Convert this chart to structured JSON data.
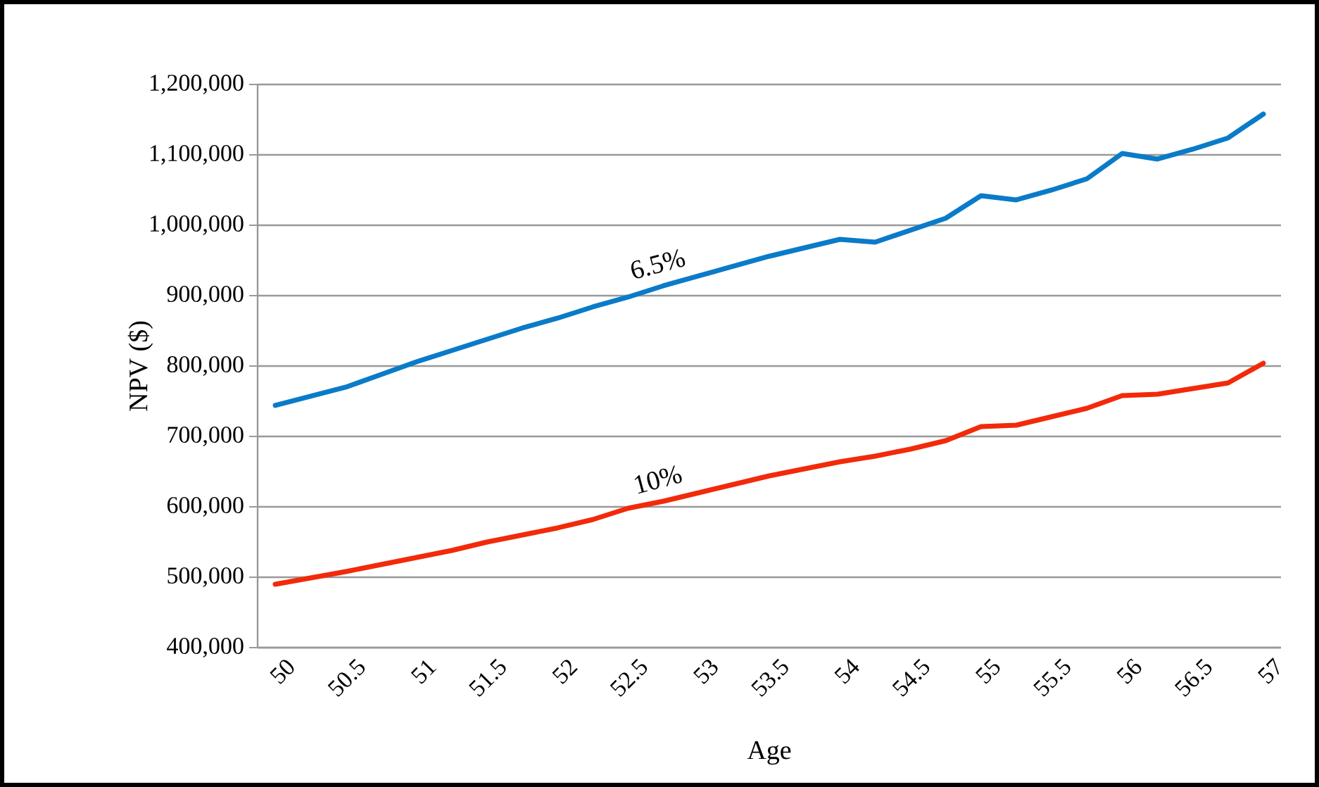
{
  "chart_data": {
    "type": "line",
    "xlabel": "Age",
    "ylabel": "NPV ($)",
    "categories": [
      "50",
      null,
      "50.5",
      null,
      "51",
      null,
      "51.5",
      null,
      "52",
      null,
      "52.5",
      null,
      "53",
      null,
      "53.5",
      null,
      "54",
      null,
      "54.5",
      null,
      "55",
      null,
      "55.5",
      null,
      "56",
      null,
      "56.5",
      null,
      "57"
    ],
    "series": [
      {
        "name": "6.5%",
        "color": "#0a7bc8",
        "values": [
          744000,
          757000,
          770000,
          788000,
          806000,
          822000,
          838000,
          854000,
          868000,
          884000,
          898000,
          914000,
          928000,
          942000,
          956000,
          968000,
          980000,
          976000,
          993000,
          1010000,
          1042000,
          1036000,
          1050000,
          1066000,
          1102000,
          1094000,
          1108000,
          1124000,
          1158000
        ]
      },
      {
        "name": "10%",
        "color": "#f22a0a",
        "values": [
          490000,
          499000,
          508000,
          518000,
          528000,
          538000,
          550000,
          560000,
          570000,
          582000,
          598000,
          608000,
          620000,
          632000,
          644000,
          654000,
          664000,
          672000,
          682000,
          694000,
          714000,
          716000,
          728000,
          740000,
          758000,
          760000,
          768000,
          776000,
          804000
        ]
      }
    ],
    "ylim": [
      400000,
      1200000
    ],
    "yticks": [
      {
        "value": 400000,
        "label": "400,000"
      },
      {
        "value": 500000,
        "label": "500,000"
      },
      {
        "value": 600000,
        "label": "600,000"
      },
      {
        "value": 700000,
        "label": "700,000"
      },
      {
        "value": 800000,
        "label": "800,000"
      },
      {
        "value": 900000,
        "label": "900,000"
      },
      {
        "value": 1000000,
        "label": "1,000,000"
      },
      {
        "value": 1100000,
        "label": "1,100,000"
      },
      {
        "value": 1200000,
        "label": "1,200,000"
      }
    ],
    "grid": "y",
    "marker": "none",
    "line_style": "solid"
  }
}
